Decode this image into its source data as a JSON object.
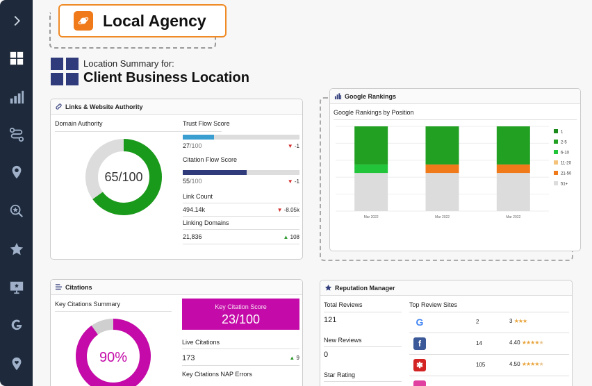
{
  "agency": {
    "name": "Local Agency"
  },
  "header": {
    "label": "Location Summary for:",
    "title": "Client Business Location"
  },
  "links_card": {
    "title": "Links & Website Authority",
    "domain_authority_label": "Domain Authority",
    "domain_authority_value": "65/100",
    "domain_authority_fraction": 0.65,
    "trust_flow_label": "Trust Flow Score",
    "trust_flow_value": "27",
    "trust_flow_max": "/100",
    "trust_flow_delta": "-1",
    "trust_flow_fraction": 0.27,
    "citation_flow_label": "Citation Flow Score",
    "citation_flow_value": "55",
    "citation_flow_max": "/100",
    "citation_flow_delta": "-1",
    "citation_flow_fraction": 0.55,
    "link_count_label": "Link Count",
    "link_count_value": "494.14k",
    "link_count_delta": "-8.05k",
    "linking_domains_label": "Linking Domains",
    "linking_domains_value": "21,836",
    "linking_domains_delta": "108"
  },
  "rankings_card": {
    "title": "Google Rankings",
    "subtitle": "Google Rankings by Position"
  },
  "chart_data": {
    "type": "bar",
    "categories": [
      "Mar 2022",
      "Mar 2022",
      "Mar 2022"
    ],
    "series": [
      {
        "name": "51+",
        "values": [
          45,
          45,
          45
        ]
      },
      {
        "name": "21-50",
        "values": [
          0,
          10,
          10
        ]
      },
      {
        "name": "11-20",
        "values": [
          0,
          0,
          0
        ]
      },
      {
        "name": "6-10",
        "values": [
          10,
          0,
          0
        ]
      },
      {
        "name": "2-5",
        "values": [
          45,
          45,
          45
        ]
      },
      {
        "name": "1",
        "values": [
          0,
          0,
          0
        ]
      }
    ],
    "legend": [
      "1",
      "2-5",
      "6-10",
      "11-20",
      "21-50",
      "51+"
    ],
    "colors": [
      "#1a8a1a",
      "#22a022",
      "#22c43a",
      "#f5c27a",
      "#f07a1a",
      "#dcdcdc"
    ],
    "stacked": true,
    "legend_position": "right"
  },
  "citations_card": {
    "title": "Citations",
    "summary_label": "Key Citations Summary",
    "donut_value": "90%",
    "donut_fraction": 0.9,
    "key_score_label": "Key Citation Score",
    "key_score_value": "23/100",
    "live_label": "Live Citations",
    "live_value": "173",
    "live_delta": "9",
    "nap_label": "Key Citations NAP Errors"
  },
  "reputation_card": {
    "title": "Reputation Manager",
    "total_reviews_label": "Total Reviews",
    "total_reviews_value": "121",
    "new_reviews_label": "New Reviews",
    "new_reviews_value": "0",
    "star_rating_label": "Star Rating",
    "top_sites_label": "Top Review Sites",
    "sites": [
      {
        "icon": "google-icon",
        "count": "2",
        "rating": "3",
        "stars": "★★★",
        "dim": ""
      },
      {
        "icon": "facebook-icon",
        "count": "14",
        "rating": "4.40",
        "stars": "★★★★",
        "dim": "★"
      },
      {
        "icon": "yelp-icon",
        "count": "105",
        "rating": "4.50",
        "stars": "★★★★",
        "dim": "★"
      }
    ]
  },
  "colors": {
    "sidebar": "#1e2a3b",
    "accent_orange": "#f08a24",
    "green": "#1a9a1a",
    "magenta": "#c40aa8",
    "navy": "#2f3b7a",
    "trust_bar": "#3a9fd0"
  }
}
